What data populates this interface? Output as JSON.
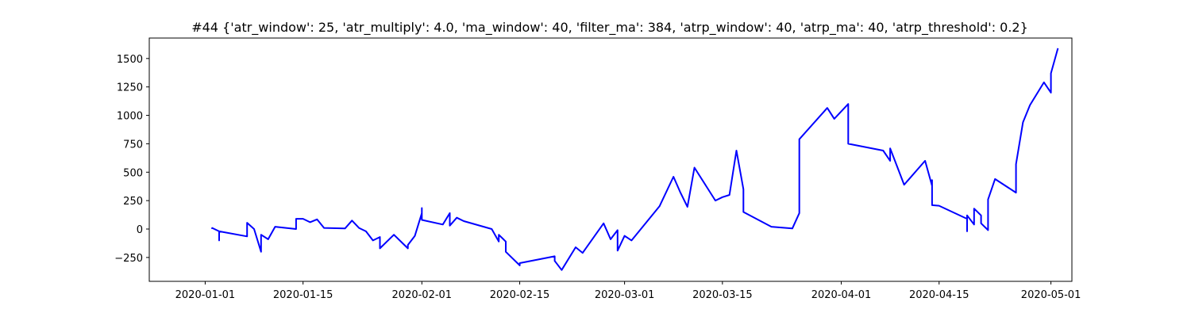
{
  "chart_data": {
    "type": "line",
    "title": "#44 {'atr_window': 25, 'atr_multiply': 4.0, 'ma_window': 40, 'filter_ma': 384, 'atrp_window': 40, 'atrp_ma': 40, 'atrp_threshold': 0.2}",
    "xlabel": "",
    "ylabel": "",
    "x_type": "date",
    "xlim": [
      "2019-12-24",
      "2020-05-04"
    ],
    "ylim": [
      -460,
      1680
    ],
    "x_ticks": [
      "2020-01-01",
      "2020-01-15",
      "2020-02-01",
      "2020-02-15",
      "2020-03-01",
      "2020-03-15",
      "2020-04-01",
      "2020-04-15",
      "2020-05-01"
    ],
    "y_ticks": [
      -250,
      0,
      250,
      500,
      750,
      1000,
      1250,
      1500
    ],
    "grid": false,
    "legend": "none",
    "series": [
      {
        "color": "#0000ff",
        "points": [
          [
            "2020-01-02",
            0
          ],
          [
            "2020-01-02",
            10
          ],
          [
            "2020-01-03",
            -20
          ],
          [
            "2020-01-03",
            -100
          ],
          [
            "2020-01-03",
            -20
          ],
          [
            "2020-01-07",
            -65
          ],
          [
            "2020-01-07",
            55
          ],
          [
            "2020-01-08",
            0
          ],
          [
            "2020-01-09",
            -200
          ],
          [
            "2020-01-09",
            -50
          ],
          [
            "2020-01-10",
            -90
          ],
          [
            "2020-01-11",
            20
          ],
          [
            "2020-01-14",
            0
          ],
          [
            "2020-01-14",
            90
          ],
          [
            "2020-01-15",
            90
          ],
          [
            "2020-01-16",
            60
          ],
          [
            "2020-01-17",
            85
          ],
          [
            "2020-01-18",
            10
          ],
          [
            "2020-01-21",
            5
          ],
          [
            "2020-01-22",
            75
          ],
          [
            "2020-01-23",
            10
          ],
          [
            "2020-01-24",
            -20
          ],
          [
            "2020-01-25",
            -100
          ],
          [
            "2020-01-26",
            -70
          ],
          [
            "2020-01-26",
            -170
          ],
          [
            "2020-01-28",
            -50
          ],
          [
            "2020-01-30",
            -170
          ],
          [
            "2020-01-30",
            -140
          ],
          [
            "2020-01-31",
            -60
          ],
          [
            "2020-02-01",
            140
          ],
          [
            "2020-02-01",
            185
          ],
          [
            "2020-02-01",
            80
          ],
          [
            "2020-02-04",
            40
          ],
          [
            "2020-02-05",
            140
          ],
          [
            "2020-02-05",
            30
          ],
          [
            "2020-02-06",
            100
          ],
          [
            "2020-02-07",
            70
          ],
          [
            "2020-02-11",
            0
          ],
          [
            "2020-02-12",
            -110
          ],
          [
            "2020-02-12",
            -50
          ],
          [
            "2020-02-13",
            -110
          ],
          [
            "2020-02-13",
            -200
          ],
          [
            "2020-02-15",
            -320
          ],
          [
            "2020-02-15",
            -300
          ],
          [
            "2020-02-20",
            -240
          ],
          [
            "2020-02-20",
            -280
          ],
          [
            "2020-02-21",
            -360
          ],
          [
            "2020-02-23",
            -160
          ],
          [
            "2020-02-24",
            -210
          ],
          [
            "2020-02-27",
            50
          ],
          [
            "2020-02-28",
            -90
          ],
          [
            "2020-02-29",
            -10
          ],
          [
            "2020-02-29",
            -190
          ],
          [
            "2020-03-01",
            -60
          ],
          [
            "2020-03-02",
            -100
          ],
          [
            "2020-03-06",
            200
          ],
          [
            "2020-03-08",
            460
          ],
          [
            "2020-03-09",
            320
          ],
          [
            "2020-03-10",
            195
          ],
          [
            "2020-03-11",
            540
          ],
          [
            "2020-03-14",
            250
          ],
          [
            "2020-03-15",
            280
          ],
          [
            "2020-03-16",
            300
          ],
          [
            "2020-03-17",
            690
          ],
          [
            "2020-03-18",
            350
          ],
          [
            "2020-03-18",
            150
          ],
          [
            "2020-03-22",
            20
          ],
          [
            "2020-03-25",
            5
          ],
          [
            "2020-03-26",
            140
          ],
          [
            "2020-03-26",
            790
          ],
          [
            "2020-03-30",
            1065
          ],
          [
            "2020-03-31",
            970
          ],
          [
            "2020-04-02",
            1100
          ],
          [
            "2020-04-02",
            750
          ],
          [
            "2020-04-07",
            690
          ],
          [
            "2020-04-08",
            600
          ],
          [
            "2020-04-08",
            710
          ],
          [
            "2020-04-09",
            550
          ],
          [
            "2020-04-10",
            390
          ],
          [
            "2020-04-13",
            600
          ],
          [
            "2020-04-14",
            380
          ],
          [
            "2020-04-14",
            430
          ],
          [
            "2020-04-14",
            210
          ],
          [
            "2020-04-15",
            205
          ],
          [
            "2020-04-19",
            90
          ],
          [
            "2020-04-19",
            -20
          ],
          [
            "2020-04-19",
            120
          ],
          [
            "2020-04-20",
            40
          ],
          [
            "2020-04-20",
            180
          ],
          [
            "2020-04-21",
            120
          ],
          [
            "2020-04-21",
            50
          ],
          [
            "2020-04-22",
            -10
          ],
          [
            "2020-04-22",
            260
          ],
          [
            "2020-04-23",
            440
          ],
          [
            "2020-04-26",
            320
          ],
          [
            "2020-04-26",
            570
          ],
          [
            "2020-04-27",
            940
          ],
          [
            "2020-04-28",
            1090
          ],
          [
            "2020-04-30",
            1290
          ],
          [
            "2020-05-01",
            1200
          ],
          [
            "2020-05-01",
            1370
          ],
          [
            "2020-05-02",
            1590
          ]
        ]
      }
    ]
  }
}
